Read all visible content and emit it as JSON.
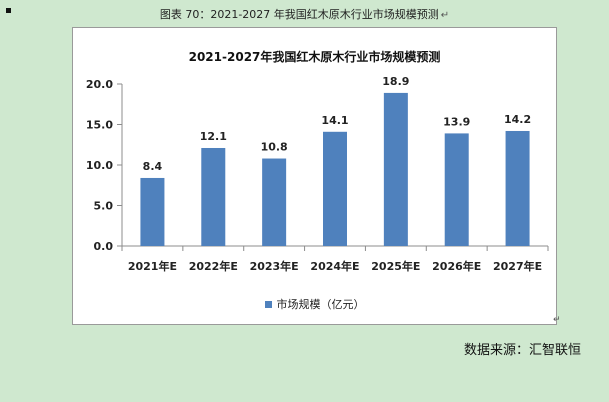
{
  "document": {
    "caption": "图表 70：2021-2027 年我国红木原木行业市场规模预测",
    "paragraph_mark": "↵",
    "source": "数据来源：汇智联恒"
  },
  "colors": {
    "bar": "#4f81bd",
    "background": "#cfe8cf"
  },
  "chart_data": {
    "type": "bar",
    "title": "2021-2027年我国红木原木行业市场规模预测",
    "categories": [
      "2021年E",
      "2022年E",
      "2023年E",
      "2024年E",
      "2025年E",
      "2026年E",
      "2027年E"
    ],
    "series": [
      {
        "name": "市场规模（亿元）",
        "values": [
          8.4,
          12.1,
          10.8,
          14.1,
          18.9,
          13.9,
          14.2
        ]
      }
    ],
    "data_labels": [
      "8.4",
      "12.1",
      "10.8",
      "14.1",
      "18.9",
      "13.9",
      "14.2"
    ],
    "y_ticks": [
      "0.0",
      "5.0",
      "10.0",
      "15.0",
      "20.0"
    ],
    "ylim": [
      0,
      20
    ],
    "grid": false,
    "legend_position": "bottom"
  }
}
